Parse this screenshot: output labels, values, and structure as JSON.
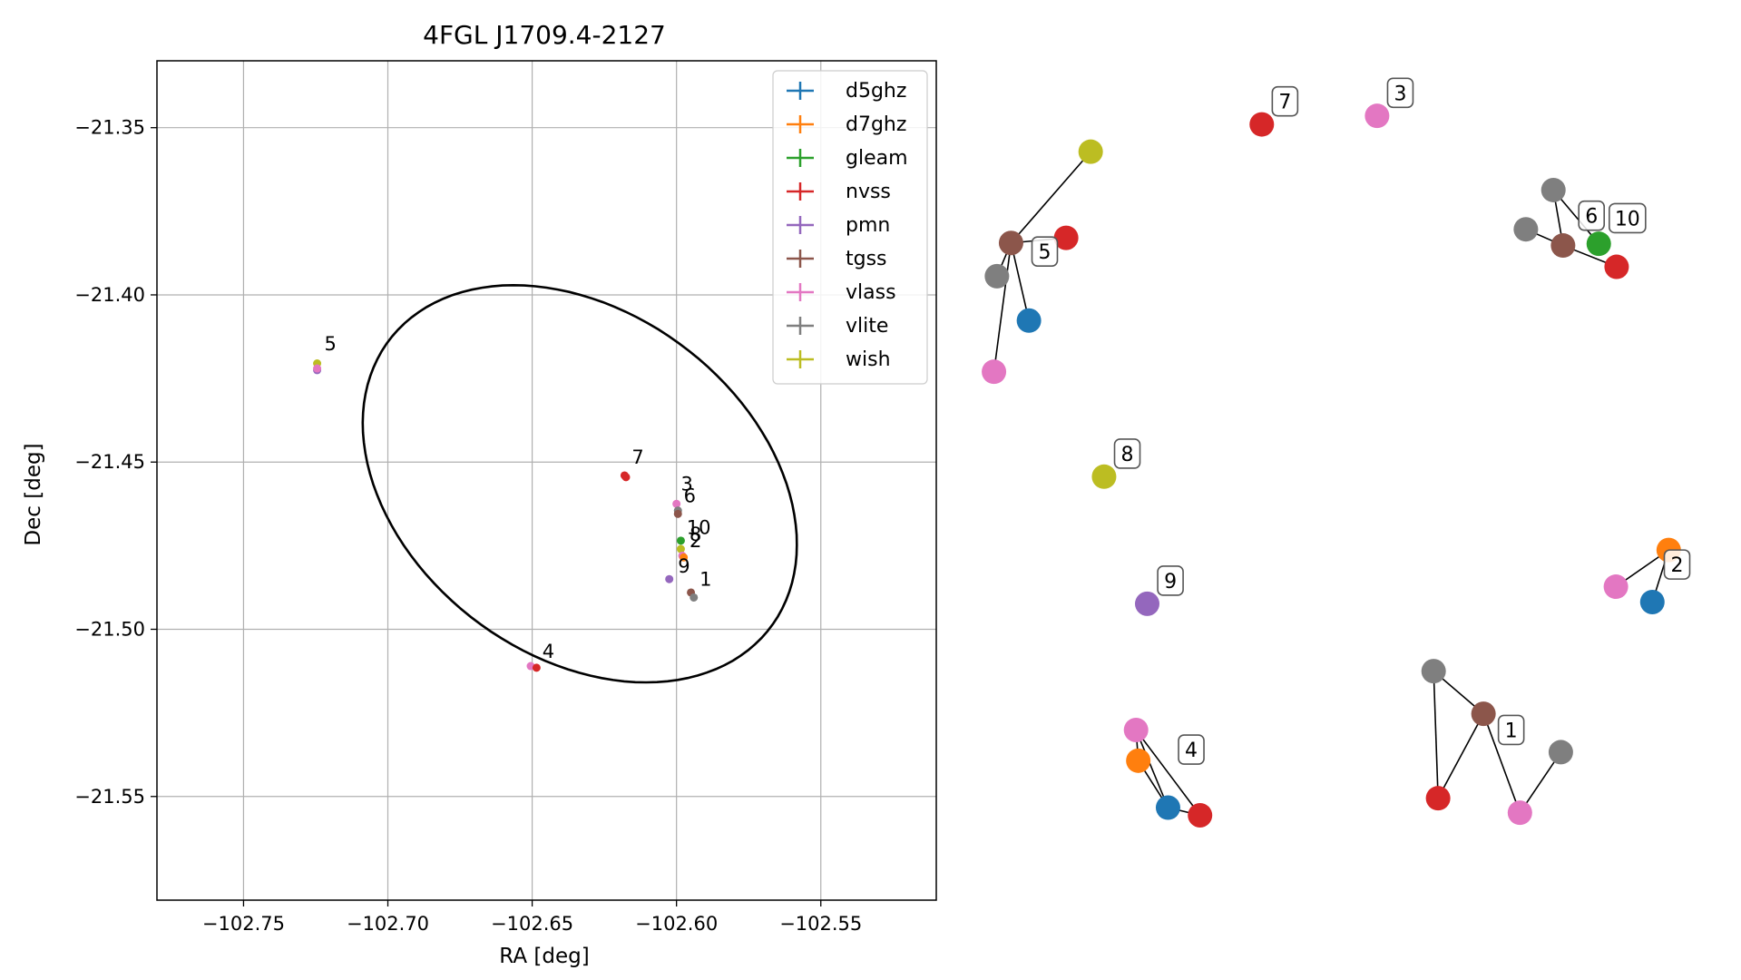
{
  "chart_data": [
    {
      "type": "scatter",
      "title": "4FGL J1709.4-2127",
      "xlabel": "RA [deg]",
      "ylabel": "Dec [deg]",
      "xlim": [
        -102.78,
        -102.51
      ],
      "ylim": [
        -21.581,
        -21.33
      ],
      "xticks": [
        -102.75,
        -102.7,
        -102.65,
        -102.6,
        -102.55
      ],
      "xtick_labels": [
        "−102.75",
        "−102.70",
        "−102.65",
        "−102.60",
        "−102.55"
      ],
      "yticks": [
        -21.35,
        -21.4,
        -21.45,
        -21.5,
        -21.55
      ],
      "ytick_labels": [
        "−21.35",
        "−21.40",
        "−21.45",
        "−21.50",
        "−21.55"
      ],
      "grid": true,
      "legend_position": "top-right",
      "legend": [
        {
          "name": "d5ghz",
          "color": "#1f77b4"
        },
        {
          "name": "d7ghz",
          "color": "#ff7f0e"
        },
        {
          "name": "gleam",
          "color": "#2ca02c"
        },
        {
          "name": "nvss",
          "color": "#d62728"
        },
        {
          "name": "pmn",
          "color": "#9467bd"
        },
        {
          "name": "tgss",
          "color": "#8c564b"
        },
        {
          "name": "vlass",
          "color": "#e377c2"
        },
        {
          "name": "vlite",
          "color": "#7f7f7f"
        },
        {
          "name": "wish",
          "color": "#bcbd22"
        }
      ],
      "ellipse": {
        "center": [
          -102.6335,
          -21.4565
        ],
        "semi_axes_deg": [
          0.0795,
          0.0535
        ],
        "rotation_deg": -26,
        "color": "#000000"
      },
      "points": [
        {
          "x": -102.7245,
          "y": -21.4205,
          "color": "#bcbd22"
        },
        {
          "x": -102.7245,
          "y": -21.4225,
          "color": "#9467bd"
        },
        {
          "x": -102.7245,
          "y": -21.422,
          "color": "#e377c2"
        },
        {
          "x": -102.618,
          "y": -21.454,
          "color": "#d62728"
        },
        {
          "x": -102.6175,
          "y": -21.4545,
          "color": "#d62728"
        },
        {
          "x": -102.6,
          "y": -21.4625,
          "color": "#e377c2"
        },
        {
          "x": -102.5995,
          "y": -21.4645,
          "color": "#7f7f7f"
        },
        {
          "x": -102.5995,
          "y": -21.4655,
          "color": "#8c564b"
        },
        {
          "x": -102.5985,
          "y": -21.4735,
          "color": "#2ca02c"
        },
        {
          "x": -102.5985,
          "y": -21.476,
          "color": "#bcbd22"
        },
        {
          "x": -102.598,
          "y": -21.478,
          "color": "#e377c2"
        },
        {
          "x": -102.5975,
          "y": -21.4785,
          "color": "#ff7f0e"
        },
        {
          "x": -102.6025,
          "y": -21.485,
          "color": "#9467bd"
        },
        {
          "x": -102.595,
          "y": -21.489,
          "color": "#8c564b"
        },
        {
          "x": -102.594,
          "y": -21.4905,
          "color": "#7f7f7f"
        },
        {
          "x": -102.6505,
          "y": -21.511,
          "color": "#e377c2"
        },
        {
          "x": -102.6485,
          "y": -21.5115,
          "color": "#d62728"
        }
      ],
      "annotations": [
        {
          "text": "5",
          "x": -102.722,
          "y": -21.4165
        },
        {
          "text": "7",
          "x": -102.6155,
          "y": -21.4505
        },
        {
          "text": "3",
          "x": -102.5985,
          "y": -21.4585
        },
        {
          "text": "6",
          "x": -102.5975,
          "y": -21.462
        },
        {
          "text": "10",
          "x": -102.5965,
          "y": -21.4715
        },
        {
          "text": "8",
          "x": -102.5955,
          "y": -21.4735
        },
        {
          "text": "2",
          "x": -102.5955,
          "y": -21.4755
        },
        {
          "text": "9",
          "x": -102.5995,
          "y": -21.483
        },
        {
          "text": "1",
          "x": -102.592,
          "y": -21.487
        },
        {
          "text": "4",
          "x": -102.6465,
          "y": -21.5085
        }
      ]
    },
    {
      "type": "scatter",
      "subtype": "network",
      "axes": false,
      "xlim": [
        0,
        1
      ],
      "ylim": [
        0,
        1
      ],
      "nodes": [
        {
          "id": "n5_tgss",
          "x": 0.042,
          "y": 0.779,
          "color": "#8c564b"
        },
        {
          "id": "n5_wish",
          "x": 0.149,
          "y": 0.886,
          "color": "#bcbd22"
        },
        {
          "id": "n5_nvss",
          "x": 0.116,
          "y": 0.785,
          "color": "#d62728"
        },
        {
          "id": "n5_vlite",
          "x": 0.023,
          "y": 0.74,
          "color": "#7f7f7f"
        },
        {
          "id": "n5_d5ghz",
          "x": 0.066,
          "y": 0.688,
          "color": "#1f77b4"
        },
        {
          "id": "n5_vlass",
          "x": 0.019,
          "y": 0.628,
          "color": "#e377c2"
        },
        {
          "id": "n7_nvss",
          "x": 0.379,
          "y": 0.918,
          "color": "#d62728"
        },
        {
          "id": "n3_vlass",
          "x": 0.534,
          "y": 0.928,
          "color": "#e377c2"
        },
        {
          "id": "n6_vlite_a",
          "x": 0.771,
          "y": 0.841,
          "color": "#7f7f7f"
        },
        {
          "id": "n6_vlite_b",
          "x": 0.734,
          "y": 0.795,
          "color": "#7f7f7f"
        },
        {
          "id": "n6_tgss",
          "x": 0.784,
          "y": 0.776,
          "color": "#8c564b"
        },
        {
          "id": "n10_gleam",
          "x": 0.832,
          "y": 0.778,
          "color": "#2ca02c"
        },
        {
          "id": "n10_nvss",
          "x": 0.856,
          "y": 0.751,
          "color": "#d62728"
        },
        {
          "id": "n8_wish",
          "x": 0.167,
          "y": 0.505,
          "color": "#bcbd22"
        },
        {
          "id": "n9_pmn",
          "x": 0.225,
          "y": 0.356,
          "color": "#9467bd"
        },
        {
          "id": "n2_d7ghz",
          "x": 0.926,
          "y": 0.419,
          "color": "#ff7f0e"
        },
        {
          "id": "n2_vlass",
          "x": 0.855,
          "y": 0.376,
          "color": "#e377c2"
        },
        {
          "id": "n2_d5ghz",
          "x": 0.904,
          "y": 0.358,
          "color": "#1f77b4"
        },
        {
          "id": "n1_vlite",
          "x": 0.61,
          "y": 0.277,
          "color": "#7f7f7f"
        },
        {
          "id": "n1_tgss",
          "x": 0.677,
          "y": 0.227,
          "color": "#8c564b"
        },
        {
          "id": "n1_vlite_b",
          "x": 0.781,
          "y": 0.182,
          "color": "#7f7f7f"
        },
        {
          "id": "n1_nvss",
          "x": 0.616,
          "y": 0.128,
          "color": "#d62728"
        },
        {
          "id": "n1_vlass",
          "x": 0.726,
          "y": 0.111,
          "color": "#e377c2"
        },
        {
          "id": "n4_vlass",
          "x": 0.21,
          "y": 0.208,
          "color": "#e377c2"
        },
        {
          "id": "n4_d7ghz",
          "x": 0.213,
          "y": 0.172,
          "color": "#ff7f0e"
        },
        {
          "id": "n4_d5ghz",
          "x": 0.253,
          "y": 0.117,
          "color": "#1f77b4"
        },
        {
          "id": "n4_nvss",
          "x": 0.296,
          "y": 0.108,
          "color": "#d62728"
        }
      ],
      "edges": [
        [
          "n5_tgss",
          "n5_wish"
        ],
        [
          "n5_tgss",
          "n5_nvss"
        ],
        [
          "n5_tgss",
          "n5_vlite"
        ],
        [
          "n5_tgss",
          "n5_d5ghz"
        ],
        [
          "n5_tgss",
          "n5_vlass"
        ],
        [
          "n6_vlite_a",
          "n6_tgss"
        ],
        [
          "n6_vlite_b",
          "n6_tgss"
        ],
        [
          "n6_vlite_a",
          "n10_gleam"
        ],
        [
          "n6_tgss",
          "n10_nvss"
        ],
        [
          "n2_vlass",
          "n2_d7ghz"
        ],
        [
          "n2_d5ghz",
          "n2_d7ghz"
        ],
        [
          "n1_vlite",
          "n1_tgss"
        ],
        [
          "n1_vlite",
          "n1_nvss"
        ],
        [
          "n1_tgss",
          "n1_nvss"
        ],
        [
          "n1_tgss",
          "n1_vlass"
        ],
        [
          "n1_vlass",
          "n1_vlite_b"
        ],
        [
          "n4_vlass",
          "n4_d7ghz"
        ],
        [
          "n4_vlass",
          "n4_d5ghz"
        ],
        [
          "n4_vlass",
          "n4_nvss"
        ],
        [
          "n4_d7ghz",
          "n4_d5ghz"
        ],
        [
          "n4_d5ghz",
          "n4_nvss"
        ]
      ],
      "labels": [
        {
          "text": "5",
          "x": 0.075,
          "y": 0.769
        },
        {
          "text": "7",
          "x": 0.398,
          "y": 0.945
        },
        {
          "text": "3",
          "x": 0.553,
          "y": 0.955
        },
        {
          "text": "6",
          "x": 0.81,
          "y": 0.811
        },
        {
          "text": "10",
          "x": 0.851,
          "y": 0.808
        },
        {
          "text": "8",
          "x": 0.186,
          "y": 0.532
        },
        {
          "text": "9",
          "x": 0.244,
          "y": 0.383
        },
        {
          "text": "2",
          "x": 0.925,
          "y": 0.402
        },
        {
          "text": "1",
          "x": 0.702,
          "y": 0.208
        },
        {
          "text": "4",
          "x": 0.272,
          "y": 0.185
        }
      ]
    }
  ]
}
